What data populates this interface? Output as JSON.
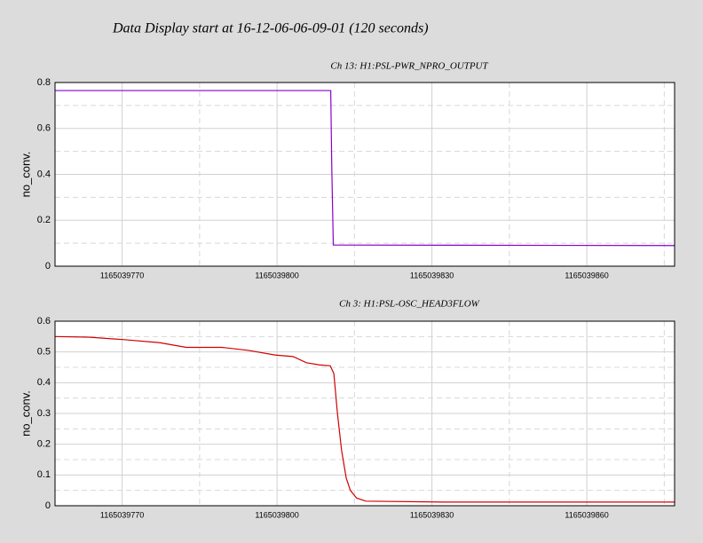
{
  "title": "Data Display start at 16-12-06-06-09-01 (120 seconds)",
  "chart_data": [
    {
      "type": "line",
      "title": "Ch 13: H1:PSL-PWR_NPRO_OUTPUT",
      "y_label": "no_conv.",
      "xlim": [
        1165039757,
        1165039877
      ],
      "xticks": [
        1165039770,
        1165039800,
        1165039830,
        1165039860
      ],
      "xminor": [
        1165039785,
        1165039815,
        1165039845,
        1165039875
      ],
      "ylim": [
        0,
        0.8
      ],
      "yticks": [
        0,
        0.2,
        0.4,
        0.6,
        0.8
      ],
      "yminor": [
        0.1,
        0.3,
        0.5,
        0.7
      ],
      "grid": true,
      "series": [
        {
          "color": "#8a00c8",
          "x": [
            1165039757,
            1165039810.4,
            1165039810.6,
            1165039810.9,
            1165039877
          ],
          "values": [
            0.765,
            0.765,
            0.43,
            0.092,
            0.09
          ]
        }
      ]
    },
    {
      "type": "line",
      "title": "Ch 3: H1:PSL-OSC_HEAD3FLOW",
      "y_label": "no_conv.",
      "xlim": [
        1165039757,
        1165039877
      ],
      "xticks": [
        1165039770,
        1165039800,
        1165039830,
        1165039860
      ],
      "xminor": [
        1165039785,
        1165039815,
        1165039845,
        1165039875
      ],
      "ylim": [
        0,
        0.6
      ],
      "yticks": [
        0,
        0.1,
        0.2,
        0.3,
        0.4,
        0.5,
        0.6
      ],
      "yminor": [
        0.05,
        0.15,
        0.25,
        0.35,
        0.45,
        0.55
      ],
      "grid": true,
      "series": [
        {
          "color": "#d00000",
          "x": [
            1165039757,
            1165039763.5,
            1165039770.4,
            1165039777.3,
            1165039782.4,
            1165039789.3,
            1165039794.5,
            1165039799.6,
            1165039803.1,
            1165039805.7,
            1165039808.2,
            1165039810.3,
            1165039811,
            1165039811.7,
            1165039812.5,
            1165039813.4,
            1165039814.2,
            1165039815.4,
            1165039817.2,
            1165039832.3,
            1165039877
          ],
          "values": [
            0.55,
            0.548,
            0.54,
            0.53,
            0.515,
            0.515,
            0.505,
            0.49,
            0.485,
            0.465,
            0.458,
            0.455,
            0.43,
            0.3,
            0.18,
            0.09,
            0.05,
            0.025,
            0.015,
            0.012,
            0.012
          ]
        }
      ]
    }
  ]
}
